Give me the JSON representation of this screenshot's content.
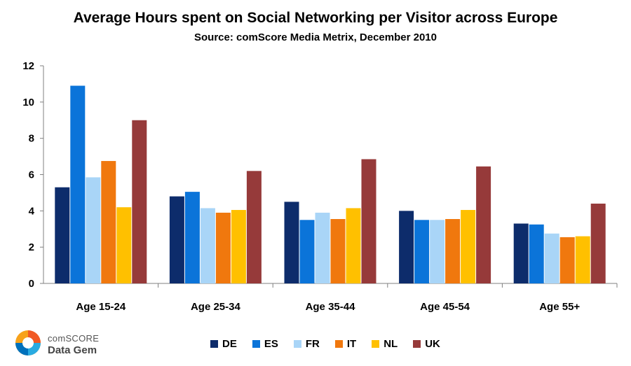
{
  "chart_data": {
    "type": "bar",
    "title": "Average Hours spent on Social Networking per Visitor across Europe",
    "subtitle": "Source: comScore Media Metrix, December 2010",
    "xlabel": "",
    "ylabel": "",
    "ylim": [
      0,
      12
    ],
    "yticks": [
      "0",
      "2",
      "4",
      "6",
      "8",
      "10",
      "12"
    ],
    "categories": [
      "Age 15-24",
      "Age 25-34",
      "Age 35-44",
      "Age 45-54",
      "Age 55+"
    ],
    "series": [
      {
        "name": "DE",
        "color": "#0d2c6b",
        "values": [
          5.3,
          4.8,
          4.5,
          4.0,
          3.3
        ]
      },
      {
        "name": "ES",
        "color": "#0b74d9",
        "values": [
          10.9,
          5.05,
          3.5,
          3.5,
          3.25
        ]
      },
      {
        "name": "FR",
        "color": "#a9d5f7",
        "values": [
          5.85,
          4.15,
          3.9,
          3.5,
          2.75
        ]
      },
      {
        "name": "IT",
        "color": "#f0780e",
        "values": [
          6.75,
          3.9,
          3.55,
          3.55,
          2.55
        ]
      },
      {
        "name": "NL",
        "color": "#ffc000",
        "values": [
          4.2,
          4.05,
          4.15,
          4.05,
          2.6
        ]
      },
      {
        "name": "UK",
        "color": "#963a3a",
        "values": [
          9.0,
          6.2,
          6.85,
          6.45,
          4.4
        ]
      }
    ],
    "grid": false,
    "legend_position": "bottom"
  },
  "logo": {
    "line1": "comSCORE",
    "line2": "Data Gem"
  }
}
